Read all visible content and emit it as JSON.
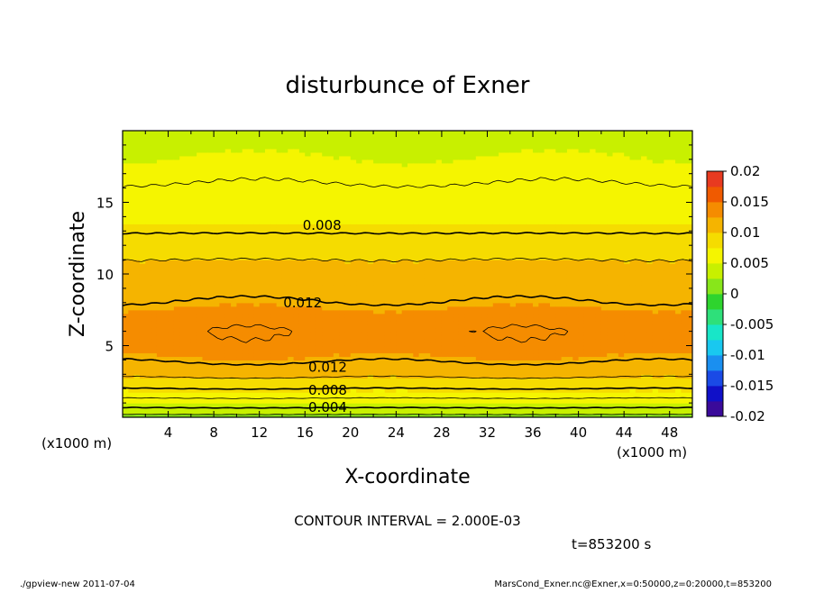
{
  "chart_data": {
    "type": "heatmap",
    "title": "disturbunce of Exner",
    "xlabel": "X-coordinate",
    "ylabel": "Z-coordinate",
    "x_unit": "(x1000 m)",
    "xlim": [
      0,
      50
    ],
    "ylim": [
      0,
      20
    ],
    "x_ticks": [
      "4",
      "8",
      "12",
      "16",
      "20",
      "24",
      "28",
      "32",
      "36",
      "40",
      "44",
      "48"
    ],
    "y_ticks": [
      "5",
      "10",
      "15"
    ],
    "colorbar": {
      "ticks": [
        "0.02",
        "0.015",
        "0.01",
        "0.005",
        "0",
        "-0.005",
        "-0.01",
        "-0.015",
        "-0.02"
      ],
      "range": [
        -0.02,
        0.02
      ],
      "colors": [
        "#6a0a8a",
        "#3a0a9a",
        "#1010c8",
        "#1a4ae6",
        "#1a8ff0",
        "#19c8f0",
        "#18e6c8",
        "#2ee07a",
        "#2ed42e",
        "#88e61a",
        "#c8f000",
        "#f5f500",
        "#f5dc00",
        "#f5b400",
        "#f58c00",
        "#f05a00",
        "#e83a20",
        "#f07060",
        "#f8a8a8"
      ]
    },
    "profile": {
      "z": [
        0,
        0.5,
        1,
        1.5,
        2,
        2.5,
        3,
        3.5,
        4,
        5,
        6,
        7,
        8,
        9,
        10,
        11,
        12,
        13,
        14,
        15,
        16,
        17,
        18,
        19,
        19.7
      ],
      "value": [
        0.001,
        0.0035,
        0.005,
        0.0065,
        0.008,
        0.0093,
        0.0105,
        0.0115,
        0.0122,
        0.0135,
        0.0138,
        0.0133,
        0.0121,
        0.0113,
        0.0107,
        0.01,
        0.0091,
        0.0078,
        0.0072,
        0.0067,
        0.0062,
        0.0056,
        0.0051,
        0.0046,
        0.0043
      ]
    },
    "contour_labels": [
      {
        "text": "0.008",
        "x": 17.5,
        "z": 13.4
      },
      {
        "text": "0.012",
        "x": 15.8,
        "z": 8.0
      },
      {
        "text": "0.012",
        "x": 18.0,
        "z": 3.5
      },
      {
        "text": "0.008",
        "x": 18.0,
        "z": 1.9
      },
      {
        "text": "0.004",
        "x": 18.0,
        "z": 0.7
      }
    ],
    "contour_interval_label": "CONTOUR INTERVAL = 2.000E-03",
    "time_label": "t=853200 s"
  },
  "footer": {
    "left": "./gpview-new  2011-07-04",
    "right": "MarsCond_Exner.nc@Exner,x=0:50000,z=0:20000,t=853200"
  }
}
